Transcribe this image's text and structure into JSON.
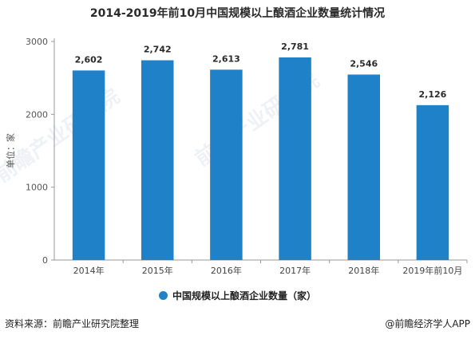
{
  "colors": {
    "bar": "#1f82c8",
    "axis": "#999999",
    "label": "#2a2a2a"
  },
  "legend": {
    "marker_color": "#1f82c8"
  },
  "footer": {
    "source_text": "资料来源：前瞻产业研究院整理",
    "brand_text": "@前瞻经济学人APP",
    "brand_icon": "circle-logo-icon"
  },
  "chart_data": {
    "type": "bar",
    "title": "2014-2019年前10月中国规模以上酿酒企业数量统计情况",
    "ylabel": "单位：家",
    "xlabel": "",
    "categories": [
      "2014年",
      "2015年",
      "2016年",
      "2017年",
      "2018年",
      "2019年前10月"
    ],
    "series": [
      {
        "name": "中国规模以上酿酒企业数量（家）",
        "values": [
          2602,
          2742,
          2613,
          2781,
          2546,
          2126
        ]
      }
    ],
    "value_labels": [
      "2,602",
      "2,742",
      "2,613",
      "2,781",
      "2,546",
      "2,126"
    ],
    "ylim": [
      0,
      3000
    ],
    "yticks": [
      0,
      1000,
      2000,
      3000
    ],
    "ytick_labels": [
      "0",
      "1000",
      "2000",
      "3000"
    ],
    "grid": false,
    "legend_position": "bottom"
  }
}
